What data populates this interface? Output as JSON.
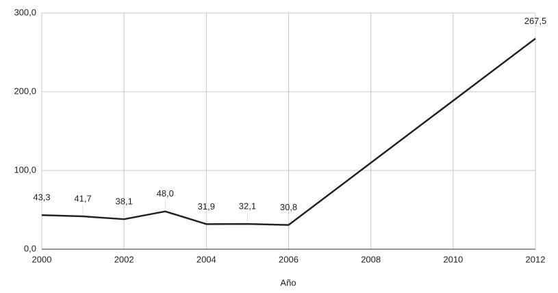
{
  "chart_data": {
    "type": "line",
    "x_label": "Año",
    "x": [
      2000,
      2001,
      2002,
      2003,
      2004,
      2005,
      2006,
      2012
    ],
    "series": [
      {
        "color": "#222222",
        "values": [
          43.3,
          41.7,
          38.1,
          48.0,
          31.9,
          32.1,
          30.8,
          267.5
        ],
        "value_labels": [
          "43,3",
          "41,7",
          "38,1",
          "48,0",
          "31,9",
          "32,1",
          "30,8",
          "267,5"
        ]
      }
    ],
    "xlim": [
      2000,
      2012
    ],
    "xticks": [
      2000,
      2002,
      2004,
      2006,
      2008,
      2010,
      2012
    ],
    "ylim": [
      0,
      300
    ],
    "yticks": [
      {
        "value": 0,
        "label": "0,0"
      },
      {
        "value": 100,
        "label": "100,0"
      },
      {
        "value": 200,
        "label": "200,0"
      },
      {
        "value": 300,
        "label": "300,0"
      }
    ],
    "grid": true
  }
}
